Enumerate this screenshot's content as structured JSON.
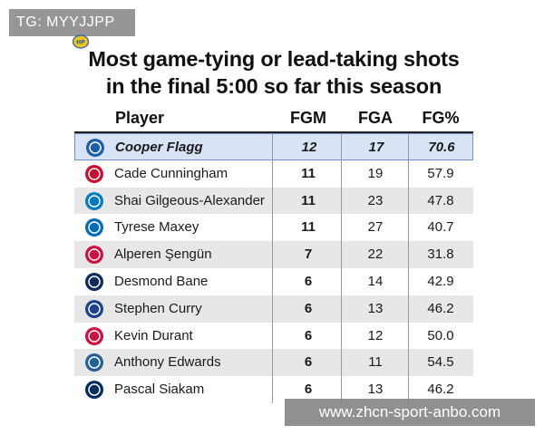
{
  "watermark_top": "TG: MYYJJPP",
  "watermark_bottom": "www.zhcn-sport-anbo.com",
  "title_line1": "Most game-tying or lead-taking shots",
  "title_line2": "in the final 5:00 so far this season",
  "headers": {
    "player": "Player",
    "fgm": "FGM",
    "fga": "FGA",
    "fgp": "FG%"
  },
  "rows": [
    {
      "name": "Cooper Flagg",
      "fgm": "12",
      "fga": "17",
      "fgp": "70.6",
      "logo": "mavericks-logo",
      "color": "#1d5fa8"
    },
    {
      "name": "Cade Cunningham",
      "fgm": "11",
      "fga": "19",
      "fgp": "57.9",
      "logo": "pistons-logo",
      "color": "#c8102e"
    },
    {
      "name": "Shai Gilgeous-Alexander",
      "fgm": "11",
      "fga": "23",
      "fgp": "47.8",
      "logo": "thunder-logo",
      "color": "#007ac1"
    },
    {
      "name": "Tyrese Maxey",
      "fgm": "11",
      "fga": "27",
      "fgp": "40.7",
      "logo": "76ers-logo",
      "color": "#006bb6"
    },
    {
      "name": "Alperen Şengün",
      "fgm": "7",
      "fga": "22",
      "fgp": "31.8",
      "logo": "rockets-logo",
      "color": "#ce1141"
    },
    {
      "name": "Desmond Bane",
      "fgm": "6",
      "fga": "14",
      "fgp": "42.9",
      "logo": "magic-logo",
      "color": "#0b2c5c"
    },
    {
      "name": "Stephen Curry",
      "fgm": "6",
      "fga": "13",
      "fgp": "46.2",
      "logo": "warriors-logo",
      "color": "#1d428a"
    },
    {
      "name": "Kevin Durant",
      "fgm": "6",
      "fga": "12",
      "fgp": "50.0",
      "logo": "rockets-logo",
      "color": "#ce1141"
    },
    {
      "name": "Anthony Edwards",
      "fgm": "6",
      "fga": "11",
      "fgp": "54.5",
      "logo": "timberwolves-logo",
      "color": "#236192"
    },
    {
      "name": "Pascal Siakam",
      "fgm": "6",
      "fga": "13",
      "fgp": "46.2",
      "logo": "pacers-logo",
      "color": "#002d62"
    }
  ]
}
